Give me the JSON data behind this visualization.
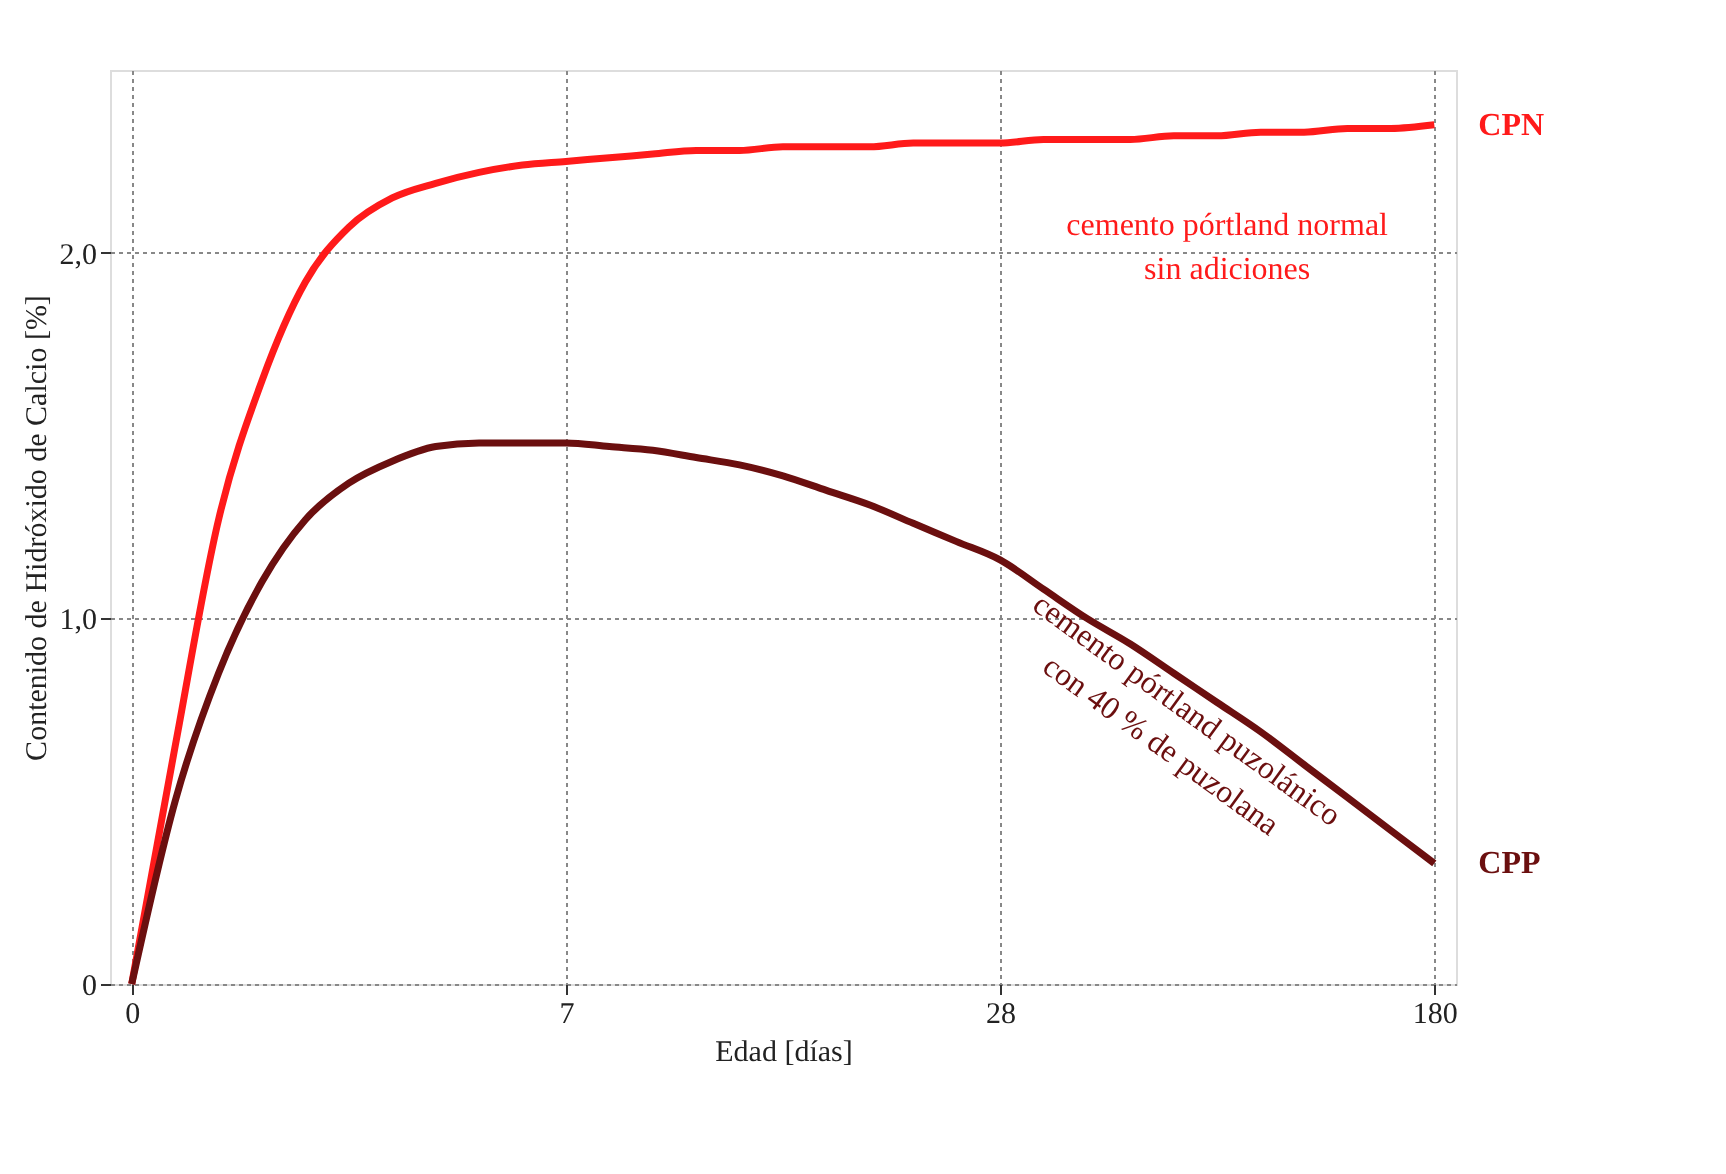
{
  "chart_data": {
    "type": "line",
    "xlabel": "Edad [días]",
    "ylabel": "Contenido de Hidróxido de Calcio [%]",
    "categories": [
      "0",
      null,
      null,
      null,
      null,
      null,
      null,
      null,
      null,
      null,
      "7",
      null,
      null,
      null,
      null,
      null,
      null,
      null,
      null,
      null,
      "28",
      null,
      null,
      null,
      null,
      null,
      null,
      null,
      null,
      null,
      "180"
    ],
    "ylim": [
      0,
      2.5
    ],
    "yticks": [
      0,
      {
        "value": 1,
        "label": "1,0"
      },
      {
        "value": 2,
        "label": "2,0"
      }
    ],
    "grid": true,
    "legend": false,
    "marker": "none",
    "line_style": "solid",
    "series": [
      {
        "name": "CPN",
        "color": "#ff1a1a",
        "values": [
          0,
          0.65,
          1.27,
          1.65,
          1.92,
          2.07,
          2.15,
          2.19,
          2.22,
          2.24,
          2.25,
          2.26,
          2.27,
          2.28,
          2.28,
          2.29,
          2.29,
          2.29,
          2.3,
          2.3,
          2.3,
          2.31,
          2.31,
          2.31,
          2.32,
          2.32,
          2.33,
          2.33,
          2.34,
          2.34,
          2.35
        ]
      },
      {
        "name": "CPP",
        "color": "#6b0f0f",
        "values": [
          0,
          0.5,
          0.85,
          1.1,
          1.27,
          1.37,
          1.43,
          1.47,
          1.48,
          1.48,
          1.48,
          1.47,
          1.46,
          1.44,
          1.42,
          1.39,
          1.35,
          1.31,
          1.26,
          1.21,
          1.16,
          1.08,
          1.0,
          0.93,
          0.85,
          0.77,
          0.69,
          0.6,
          0.51,
          0.42,
          0.33
        ]
      }
    ],
    "annotations": [
      "cemento pórtland normal\nsin adiciones",
      "cemento pórtland puzolánico\ncon 40 % de puzolana"
    ]
  }
}
